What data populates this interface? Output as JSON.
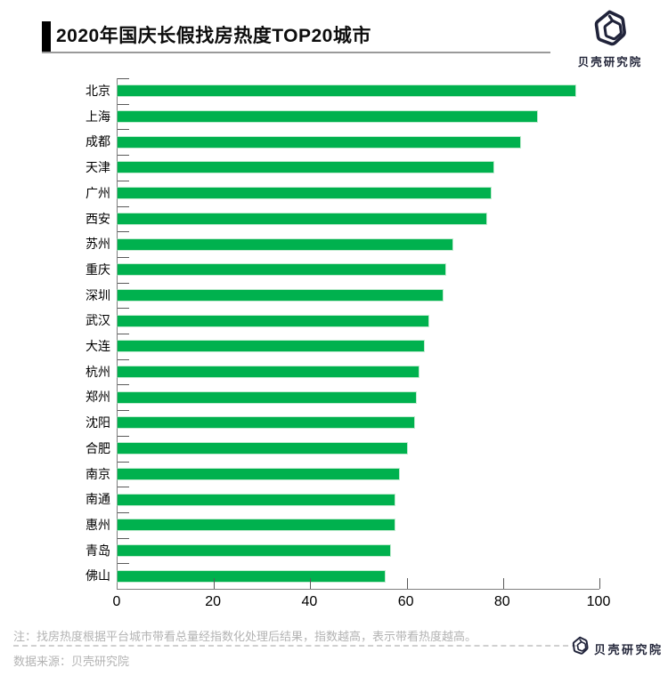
{
  "header": {
    "title": "2020年国庆长假找房热度TOP20城市",
    "brand": "贝壳研究院"
  },
  "chart_data": {
    "type": "bar",
    "orientation": "horizontal",
    "title": "2020年国庆长假找房热度TOP20城市",
    "categories": [
      "北京",
      "上海",
      "成都",
      "天津",
      "广州",
      "西安",
      "苏州",
      "重庆",
      "深圳",
      "武汉",
      "大连",
      "杭州",
      "郑州",
      "沈阳",
      "合肥",
      "南京",
      "南通",
      "惠州",
      "青岛",
      "佛山"
    ],
    "values": [
      95,
      87,
      83.5,
      78,
      77.5,
      76.5,
      69.5,
      68,
      67.5,
      64.5,
      63.5,
      62.5,
      62,
      61.5,
      60,
      58.5,
      57.5,
      57.5,
      56.5,
      55.5
    ],
    "xlim": [
      0,
      100
    ],
    "x_ticks": [
      0,
      20,
      40,
      60,
      80,
      100
    ],
    "xlabel": "",
    "ylabel": "",
    "grid": false,
    "legend": "none",
    "bar_color": "#00b14e",
    "axis_color": "#7f7f7f",
    "tick_color": "#595959"
  },
  "footer": {
    "note": "注：找房热度根据平台城市带看总量经指数化处理后结果，指数越高，表示带看热度越高。",
    "source": "数据来源：贝壳研究院",
    "brand": "贝壳研究院"
  },
  "icons": {
    "brand_logo": "beike-shell-icon"
  }
}
